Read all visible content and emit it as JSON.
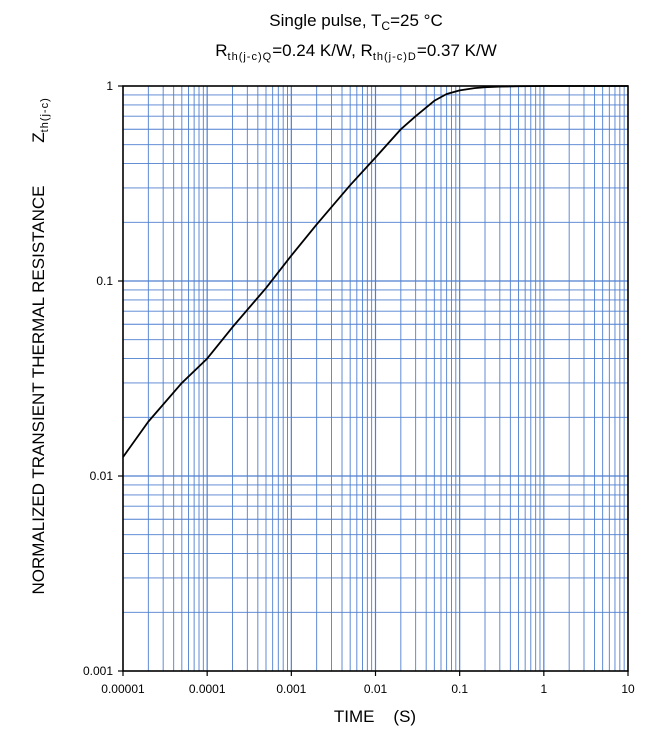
{
  "chart_data": {
    "type": "line",
    "title_line1": {
      "prefix": "Single pulse, T",
      "sub": "C",
      "suffix": "=25 °C"
    },
    "title_line2": {
      "r1": "R",
      "r1_sub": "th(j-c)Q",
      "r1_val": "=0.24 K/W, ",
      "r2": "R",
      "r2_sub": "th(j-c)D",
      "r2_val": "=0.37 K/W"
    },
    "xlabel": "TIME    (S)",
    "ylabel": {
      "main": "NORMALIZED TRANSIENT THERMAL RESISTANCE",
      "z": "Z",
      "z_sub": "th(j-c)"
    },
    "x_scale": "log",
    "y_scale": "log",
    "xlim": [
      1e-05,
      10
    ],
    "ylim": [
      0.001,
      1
    ],
    "x_tick_labels": [
      "0.00001",
      "0.0001",
      "0.001",
      "0.01",
      "0.1",
      "1",
      "10"
    ],
    "y_tick_labels": [
      "0.001",
      "0.01",
      "0.1",
      "1"
    ],
    "grid": true,
    "colors": {
      "grid": "#4f7fcf",
      "curve": "#000000",
      "axes": "#000000"
    },
    "series": [
      {
        "x": [
          1e-05,
          2e-05,
          5e-05,
          0.0001,
          0.0002,
          0.0005,
          0.001,
          0.002,
          0.005,
          0.01,
          0.02,
          0.03,
          0.05,
          0.07,
          0.1,
          0.15,
          0.2,
          0.3,
          0.5,
          1,
          10
        ],
        "y": [
          0.0125,
          0.019,
          0.03,
          0.04,
          0.058,
          0.092,
          0.135,
          0.195,
          0.31,
          0.43,
          0.6,
          0.7,
          0.84,
          0.91,
          0.95,
          0.975,
          0.985,
          0.993,
          0.997,
          1.0,
          1.0
        ]
      }
    ]
  }
}
